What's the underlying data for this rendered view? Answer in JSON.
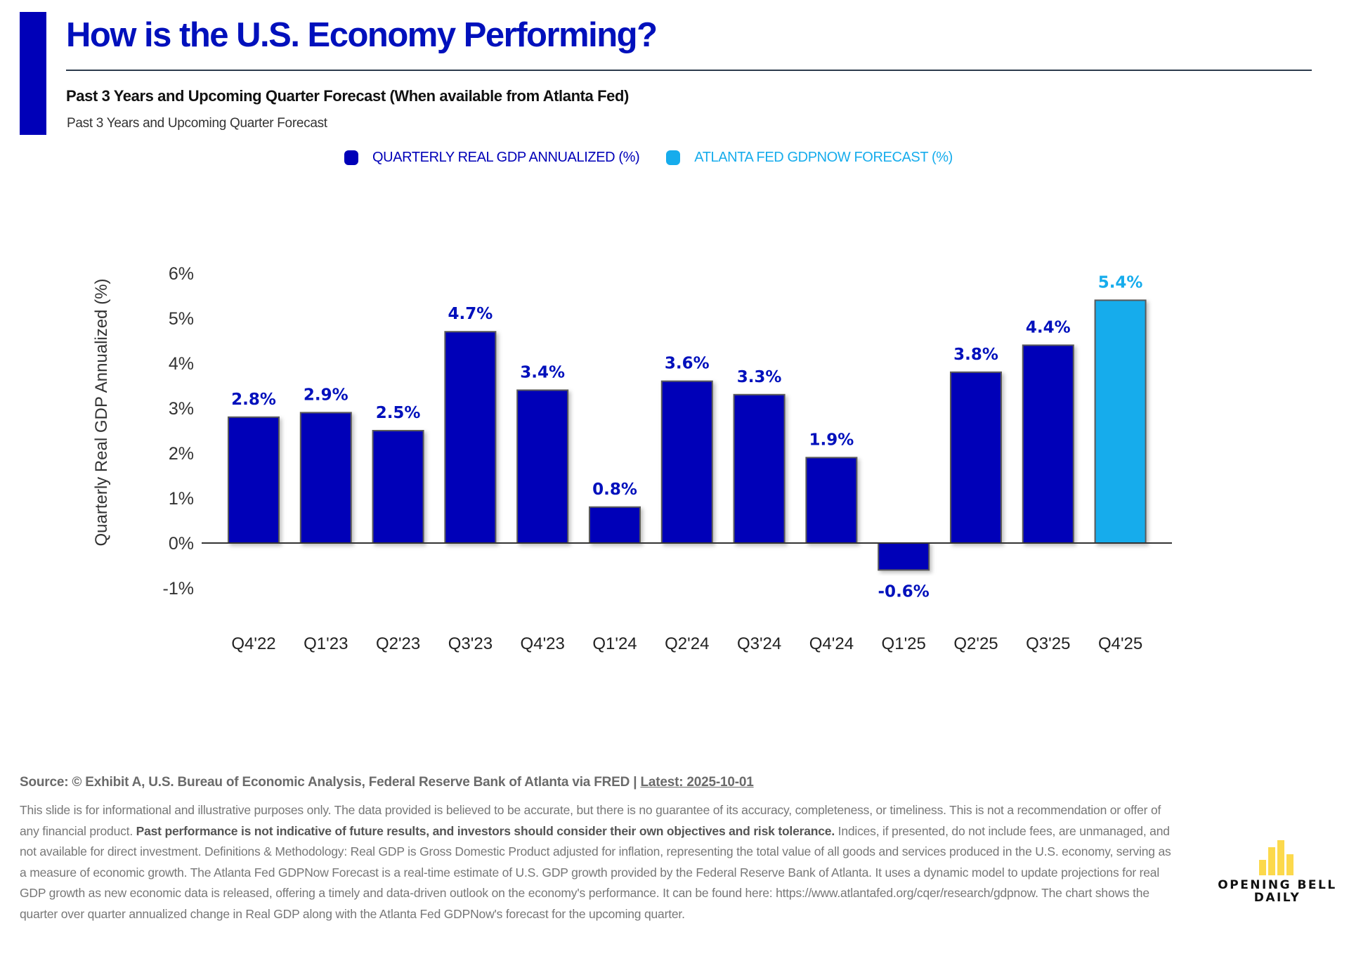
{
  "header": {
    "title": "How is the U.S. Economy Performing?",
    "subtitle": "Past 3 Years and Upcoming Quarter Forecast (When available from Atlanta Fed)",
    "subsubtitle": "Past 3 Years and Upcoming Quarter Forecast"
  },
  "legend": [
    {
      "label": "QUARTERLY REAL GDP ANNUALIZED (%)",
      "color": "#0000b8"
    },
    {
      "label": "ATLANTA FED GDPNOW FORECAST (%)",
      "color": "#16acec"
    }
  ],
  "colors": {
    "actual": "#0000b8",
    "forecast": "#16acec",
    "actual_label": "#0010bc",
    "forecast_label": "#16acec"
  },
  "chart_data": {
    "type": "bar",
    "title": "How is the U.S. Economy Performing?",
    "xlabel": "",
    "ylabel": "Quarterly Real GDP Annualized (%)",
    "ylim": [
      -1,
      6
    ],
    "yticks": [
      6,
      5,
      4,
      3,
      2,
      1,
      0,
      -1
    ],
    "ytick_labels": [
      "6%",
      "5%",
      "4%",
      "3%",
      "2%",
      "1%",
      "0%",
      "-1%"
    ],
    "grid": false,
    "legend_position": "top-center",
    "categories": [
      "Q4'22",
      "Q1'23",
      "Q2'23",
      "Q3'23",
      "Q4'23",
      "Q1'24",
      "Q2'24",
      "Q3'24",
      "Q4'24",
      "Q1'25",
      "Q2'25",
      "Q3'25",
      "Q4'25"
    ],
    "values": [
      2.8,
      2.9,
      2.5,
      4.7,
      3.4,
      0.8,
      3.6,
      3.3,
      1.9,
      -0.6,
      3.8,
      4.4,
      5.4
    ],
    "data_labels": [
      "2.8%",
      "2.9%",
      "2.5%",
      "4.7%",
      "3.4%",
      "0.8%",
      "3.6%",
      "3.3%",
      "1.9%",
      "-0.6%",
      "3.8%",
      "4.4%",
      "5.4%"
    ],
    "series_type": [
      "actual",
      "actual",
      "actual",
      "actual",
      "actual",
      "actual",
      "actual",
      "actual",
      "actual",
      "actual",
      "actual",
      "actual",
      "forecast"
    ],
    "series": [
      {
        "name": "QUARTERLY REAL GDP ANNUALIZED (%)",
        "values": [
          2.8,
          2.9,
          2.5,
          4.7,
          3.4,
          0.8,
          3.6,
          3.3,
          1.9,
          -0.6,
          3.8,
          4.4,
          null
        ]
      },
      {
        "name": "ATLANTA FED GDPNOW FORECAST (%)",
        "values": [
          null,
          null,
          null,
          null,
          null,
          null,
          null,
          null,
          null,
          null,
          null,
          null,
          5.4
        ]
      }
    ]
  },
  "footer": {
    "source_prefix": "Source: © Exhibit A, U.S. Bureau of Economic Analysis, Federal Reserve Bank of Atlanta via FRED | ",
    "latest_link": "Latest: 2025-10-01",
    "disclaimer_part1": "This slide is for informational and illustrative purposes only. The data provided is believed to be accurate, but there is no guarantee of its accuracy, completeness, or timeliness. This is not a recommendation or offer of any financial product. ",
    "disclaimer_bold": "Past performance is not indicative of future results, and investors should consider their own objectives and risk tolerance.",
    "disclaimer_part2": " Indices, if presented, do not include fees, are unmanaged, and not available for direct investment. Definitions & Methodology: Real GDP is Gross Domestic Product adjusted for inflation, representing the total value of all goods and services produced in the U.S. economy, serving as a measure of economic growth. The Atlanta Fed GDPNow Forecast is a real-time estimate of U.S. GDP growth provided by the Federal Reserve Bank of Atlanta. It uses a dynamic model to update projections for real GDP growth as new economic data is released, offering a timely and data-driven outlook on the economy's performance. It can be found here: https://www.atlantafed.org/cqer/research/gdpnow. The chart shows the quarter over quarter annualized change in Real GDP along with the Atlanta Fed GDPNow's forecast for the upcoming quarter."
  },
  "logo": {
    "line1": "OPENING BELL",
    "line2": "DAILY",
    "color": "#fcd94c"
  }
}
